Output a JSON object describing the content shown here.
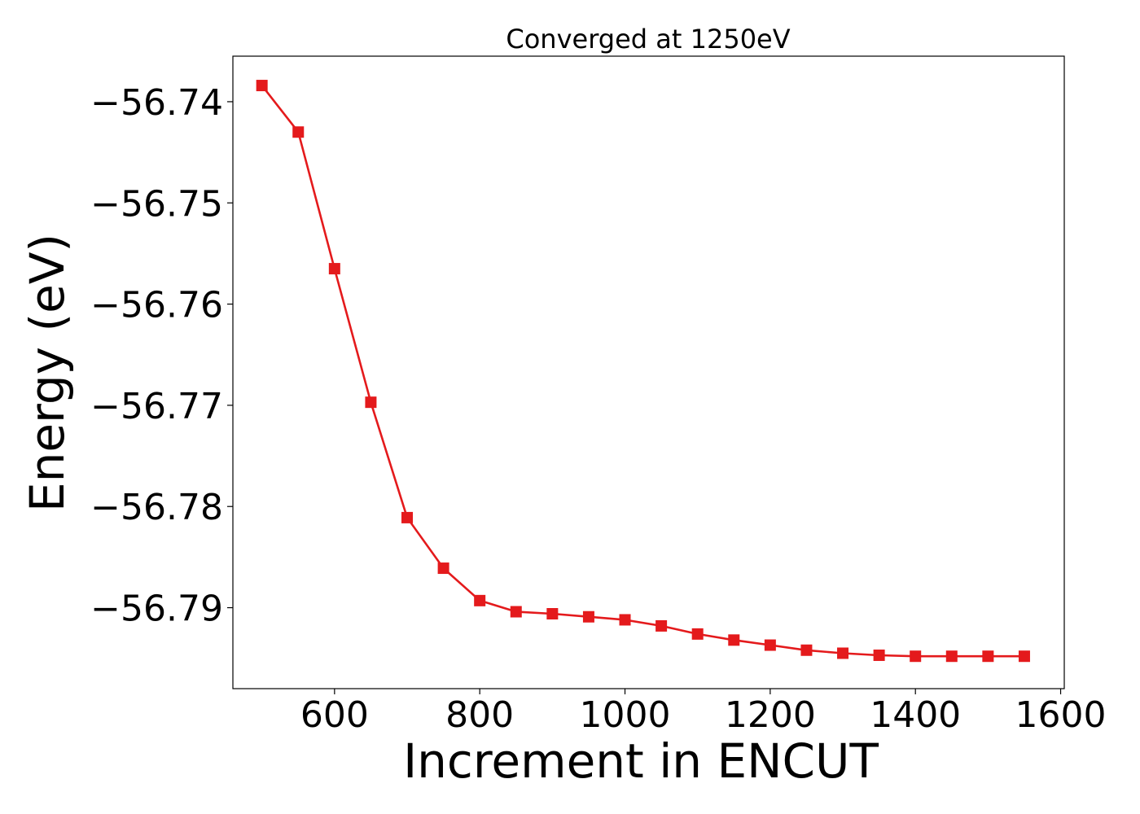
{
  "chart_data": {
    "type": "line",
    "title": "Converged at 1250eV",
    "xlabel": "Increment in ENCUT",
    "ylabel": "Energy (eV)",
    "xlim": [
      460,
      1605
    ],
    "ylim": [
      -56.798,
      -56.7355
    ],
    "x_ticks": [
      600,
      800,
      1000,
      1200,
      1400,
      1600
    ],
    "x_tick_labels": [
      "600",
      "800",
      "1000",
      "1200",
      "1400",
      "1600"
    ],
    "y_ticks": [
      -56.74,
      -56.75,
      -56.76,
      -56.77,
      -56.78,
      -56.79
    ],
    "y_tick_labels": [
      "−56.74",
      "−56.75",
      "−56.76",
      "−56.77",
      "−56.78",
      "−56.79"
    ],
    "grid": false,
    "marker": "square",
    "color": "#e41a1c",
    "series": [
      {
        "x": [
          500,
          550,
          600,
          650,
          700,
          750,
          800,
          850,
          900,
          950,
          1000,
          1050,
          1100,
          1150,
          1200,
          1250,
          1300,
          1350,
          1400,
          1450,
          1500,
          1550
        ],
        "y": [
          -56.7384,
          -56.743,
          -56.7565,
          -56.7697,
          -56.7811,
          -56.7861,
          -56.7893,
          -56.7904,
          -56.7906,
          -56.7909,
          -56.7912,
          -56.7918,
          -56.7926,
          -56.7932,
          -56.7937,
          -56.7942,
          -56.7945,
          -56.7947,
          -56.7948,
          -56.7948,
          -56.7948,
          -56.7948
        ]
      }
    ]
  }
}
